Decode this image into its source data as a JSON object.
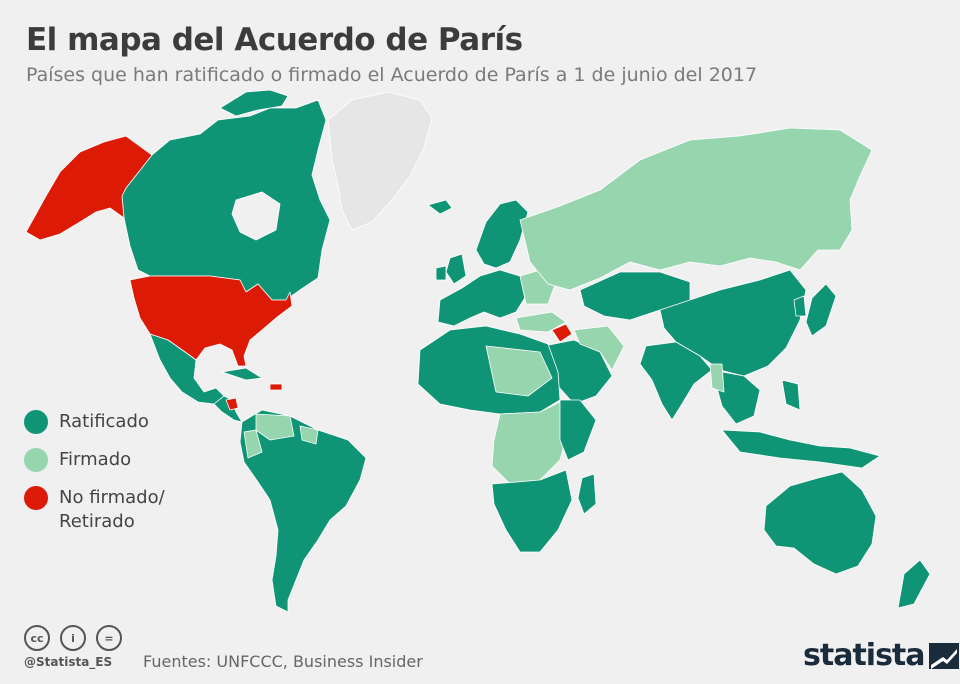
{
  "header": {
    "title": "El mapa del Acuerdo de París",
    "subtitle": "Países que han ratificado o firmado el Acuerdo de París a 1 de junio del 2017"
  },
  "legend": {
    "items": [
      {
        "label": "Ratificado",
        "color": "#0f9475"
      },
      {
        "label": "Firmado",
        "color": "#96d5ae"
      },
      {
        "label": "No firmado/ Retirado",
        "color": "#dc1a05"
      }
    ],
    "no_data_color": "#e6e6e6"
  },
  "footer": {
    "icons": [
      "cc-icon",
      "by-icon",
      "nd-icon"
    ],
    "icon_glyphs": [
      "cc",
      "i",
      "="
    ],
    "handle": "@Statista_ES",
    "sources": "Fuentes: UNFCCC, Business Insider",
    "logo_text": "statista"
  },
  "map_regions": [
    {
      "name": "Alaska",
      "status": "No firmado/ Retirado"
    },
    {
      "name": "Estados Unidos",
      "status": "No firmado/ Retirado"
    },
    {
      "name": "Nicaragua",
      "status": "No firmado/ Retirado"
    },
    {
      "name": "Siria",
      "status": "No firmado/ Retirado"
    },
    {
      "name": "Canadá",
      "status": "Ratificado"
    },
    {
      "name": "México",
      "status": "Ratificado"
    },
    {
      "name": "Sudamérica",
      "status": "Ratificado"
    },
    {
      "name": "China",
      "status": "Ratificado"
    },
    {
      "name": "India",
      "status": "Ratificado"
    },
    {
      "name": "Australia",
      "status": "Ratificado"
    },
    {
      "name": "Rusia",
      "status": "Firmado"
    },
    {
      "name": "Groenlandia",
      "status": "Sin datos"
    }
  ]
}
